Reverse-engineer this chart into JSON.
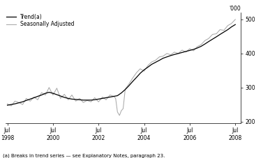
{
  "ylabel_right": "'000",
  "legend": [
    "Trend(a)",
    "Seasonally Adjusted"
  ],
  "trend_color": "#000000",
  "seasonal_color": "#aaaaaa",
  "footnote": "(a) Breaks in trend series — see Explanatory Notes, paragraph 23.",
  "xlim_start": 1998.42,
  "xlim_end": 2008.75,
  "ylim": [
    195,
    520
  ],
  "yticks": [
    200,
    300,
    400,
    500
  ],
  "xtick_years": [
    1998,
    2000,
    2002,
    2004,
    2006,
    2008
  ],
  "trend_color_lw": 0.9,
  "seasonal_color_lw": 0.75,
  "trend_x": [
    1998.5,
    1998.67,
    1998.83,
    1999.0,
    1999.17,
    1999.33,
    1999.5,
    1999.67,
    1999.83,
    2000.0,
    2000.17,
    2000.33,
    2000.5,
    2000.67,
    2000.83,
    2001.0,
    2001.17,
    2001.33,
    2001.5,
    2001.67,
    2001.83,
    2002.0,
    2002.17,
    2002.33,
    2002.5,
    2002.67,
    2002.83,
    2003.0,
    2003.17,
    2003.33,
    2003.5,
    2003.67,
    2003.83,
    2004.0,
    2004.17,
    2004.33,
    2004.5,
    2004.67,
    2004.83,
    2005.0,
    2005.17,
    2005.33,
    2005.5,
    2005.67,
    2005.83,
    2006.0,
    2006.17,
    2006.33,
    2006.5,
    2006.67,
    2006.83,
    2007.0,
    2007.17,
    2007.33,
    2007.5,
    2007.67,
    2007.83,
    2008.0,
    2008.17,
    2008.33,
    2008.5
  ],
  "trend_y": [
    248,
    250,
    252,
    255,
    258,
    262,
    266,
    270,
    274,
    278,
    283,
    286,
    283,
    279,
    275,
    271,
    268,
    266,
    265,
    264,
    263,
    263,
    263,
    264,
    266,
    268,
    270,
    272,
    274,
    276,
    284,
    294,
    305,
    318,
    330,
    342,
    352,
    360,
    368,
    374,
    380,
    386,
    390,
    394,
    397,
    400,
    403,
    406,
    409,
    412,
    416,
    421,
    428,
    435,
    442,
    449,
    456,
    463,
    470,
    478,
    485
  ],
  "seasonal_x": [
    1998.5,
    1998.67,
    1998.83,
    1999.0,
    1999.17,
    1999.33,
    1999.5,
    1999.67,
    1999.83,
    2000.0,
    2000.17,
    2000.33,
    2000.5,
    2000.67,
    2000.83,
    2001.0,
    2001.17,
    2001.33,
    2001.5,
    2001.67,
    2001.83,
    2002.0,
    2002.17,
    2002.33,
    2002.5,
    2002.67,
    2002.83,
    2003.0,
    2003.17,
    2003.25,
    2003.33,
    2003.42,
    2003.5,
    2003.58,
    2003.67,
    2003.83,
    2004.0,
    2004.17,
    2004.33,
    2004.5,
    2004.67,
    2004.83,
    2005.0,
    2005.17,
    2005.33,
    2005.5,
    2005.67,
    2005.83,
    2006.0,
    2006.17,
    2006.33,
    2006.5,
    2006.67,
    2006.83,
    2007.0,
    2007.17,
    2007.33,
    2007.5,
    2007.67,
    2007.83,
    2008.0,
    2008.17,
    2008.33,
    2008.5
  ],
  "seasonal_y": [
    252,
    246,
    260,
    256,
    250,
    268,
    260,
    272,
    264,
    285,
    278,
    300,
    278,
    298,
    268,
    280,
    264,
    278,
    260,
    268,
    256,
    262,
    258,
    270,
    258,
    272,
    264,
    278,
    274,
    268,
    228,
    218,
    232,
    238,
    295,
    310,
    328,
    344,
    355,
    348,
    365,
    375,
    380,
    390,
    392,
    400,
    396,
    404,
    400,
    410,
    404,
    414,
    408,
    420,
    426,
    438,
    444,
    456,
    458,
    470,
    468,
    482,
    488,
    500
  ]
}
